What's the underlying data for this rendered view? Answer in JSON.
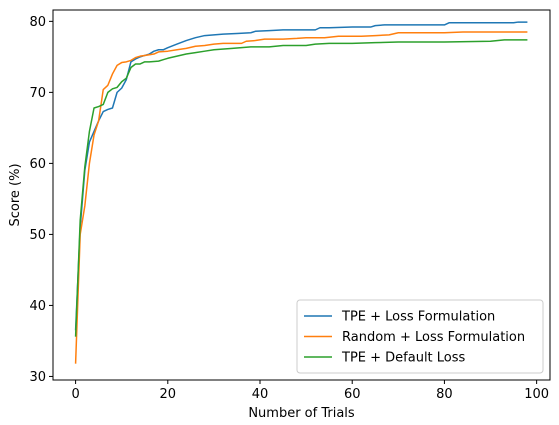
{
  "chart_data": {
    "type": "line",
    "xlabel": "Number of Trials",
    "ylabel": "Score (%)",
    "xlim": [
      -4.9,
      102.9
    ],
    "ylim": [
      29.5,
      81.6
    ],
    "xticks": [
      0,
      20,
      40,
      60,
      80,
      100
    ],
    "yticks": [
      30,
      40,
      50,
      60,
      70,
      80
    ],
    "grid": false,
    "legend_position": "lower-right",
    "series": [
      {
        "name": "TPE + Loss Formulation",
        "color": "#1f77b4",
        "points": [
          [
            0,
            36.5
          ],
          [
            1,
            51
          ],
          [
            2,
            59
          ],
          [
            3,
            63
          ],
          [
            4,
            64.5
          ],
          [
            5,
            66
          ],
          [
            6,
            67.3
          ],
          [
            7,
            67.6
          ],
          [
            8,
            67.8
          ],
          [
            9,
            70
          ],
          [
            10,
            70.6
          ],
          [
            11,
            71.8
          ],
          [
            12,
            74.3
          ],
          [
            13,
            74.7
          ],
          [
            14,
            75.0
          ],
          [
            15,
            75.2
          ],
          [
            16,
            75.4
          ],
          [
            17,
            75.8
          ],
          [
            18,
            76.0
          ],
          [
            19,
            76.0
          ],
          [
            20,
            76.3
          ],
          [
            22,
            76.8
          ],
          [
            24,
            77.3
          ],
          [
            26,
            77.7
          ],
          [
            28,
            78.0
          ],
          [
            30,
            78.1
          ],
          [
            32,
            78.2
          ],
          [
            35,
            78.3
          ],
          [
            38,
            78.4
          ],
          [
            39,
            78.6
          ],
          [
            42,
            78.7
          ],
          [
            45,
            78.8
          ],
          [
            48,
            78.8
          ],
          [
            52,
            78.8
          ],
          [
            53,
            79.1
          ],
          [
            55,
            79.1
          ],
          [
            60,
            79.2
          ],
          [
            64,
            79.2
          ],
          [
            65,
            79.4
          ],
          [
            67,
            79.5
          ],
          [
            70,
            79.5
          ],
          [
            75,
            79.5
          ],
          [
            80,
            79.5
          ],
          [
            81,
            79.8
          ],
          [
            85,
            79.8
          ],
          [
            90,
            79.8
          ],
          [
            95,
            79.8
          ],
          [
            96,
            79.9
          ],
          [
            98,
            79.9
          ]
        ]
      },
      {
        "name": "Random + Loss Formulation",
        "color": "#ff7f0e",
        "points": [
          [
            0,
            31.8
          ],
          [
            1,
            50
          ],
          [
            2,
            54
          ],
          [
            3,
            60
          ],
          [
            4,
            64
          ],
          [
            5,
            66
          ],
          [
            6,
            70.4
          ],
          [
            7,
            71
          ],
          [
            8,
            72.6
          ],
          [
            9,
            73.8
          ],
          [
            10,
            74.2
          ],
          [
            11,
            74.3
          ],
          [
            12,
            74.5
          ],
          [
            13,
            74.9
          ],
          [
            14,
            75.1
          ],
          [
            15,
            75.2
          ],
          [
            16,
            75.3
          ],
          [
            17,
            75.4
          ],
          [
            18,
            75.7
          ],
          [
            20,
            75.8
          ],
          [
            22,
            76.0
          ],
          [
            24,
            76.2
          ],
          [
            26,
            76.5
          ],
          [
            28,
            76.6
          ],
          [
            30,
            76.8
          ],
          [
            32,
            76.9
          ],
          [
            34,
            76.9
          ],
          [
            36,
            76.9
          ],
          [
            37,
            77.2
          ],
          [
            39,
            77.3
          ],
          [
            41,
            77.5
          ],
          [
            45,
            77.5
          ],
          [
            48,
            77.6
          ],
          [
            50,
            77.7
          ],
          [
            54,
            77.7
          ],
          [
            57,
            77.9
          ],
          [
            62,
            77.9
          ],
          [
            65,
            78.0
          ],
          [
            68,
            78.1
          ],
          [
            70,
            78.4
          ],
          [
            75,
            78.4
          ],
          [
            80,
            78.4
          ],
          [
            84,
            78.5
          ],
          [
            90,
            78.5
          ],
          [
            98,
            78.5
          ]
        ]
      },
      {
        "name": "TPE + Default Loss",
        "color": "#2ca02c",
        "points": [
          [
            0,
            35.6
          ],
          [
            1,
            52
          ],
          [
            2,
            59.5
          ],
          [
            3,
            64.5
          ],
          [
            4,
            67.8
          ],
          [
            5,
            68.0
          ],
          [
            6,
            68.3
          ],
          [
            7,
            70.0
          ],
          [
            8,
            70.5
          ],
          [
            9,
            70.7
          ],
          [
            10,
            71.5
          ],
          [
            11,
            72.0
          ],
          [
            12,
            73.5
          ],
          [
            13,
            74.0
          ],
          [
            14,
            74.0
          ],
          [
            15,
            74.3
          ],
          [
            16,
            74.3
          ],
          [
            18,
            74.4
          ],
          [
            19,
            74.6
          ],
          [
            20,
            74.8
          ],
          [
            22,
            75.1
          ],
          [
            24,
            75.4
          ],
          [
            26,
            75.6
          ],
          [
            28,
            75.8
          ],
          [
            30,
            76.0
          ],
          [
            34,
            76.2
          ],
          [
            36,
            76.3
          ],
          [
            38,
            76.4
          ],
          [
            42,
            76.4
          ],
          [
            45,
            76.6
          ],
          [
            50,
            76.6
          ],
          [
            52,
            76.8
          ],
          [
            55,
            76.9
          ],
          [
            60,
            76.9
          ],
          [
            65,
            77.0
          ],
          [
            70,
            77.1
          ],
          [
            80,
            77.1
          ],
          [
            90,
            77.2
          ],
          [
            93,
            77.4
          ],
          [
            98,
            77.4
          ]
        ]
      }
    ]
  }
}
